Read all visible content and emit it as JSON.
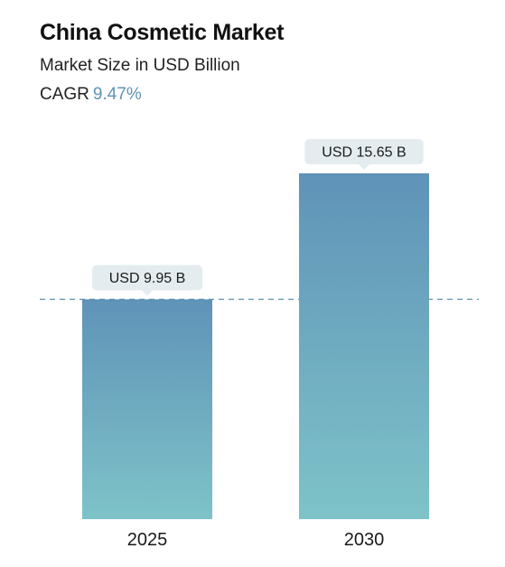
{
  "header": {
    "title": "China Cosmetic Market",
    "subtitle": "Market Size in USD Billion",
    "cagr_label": "CAGR",
    "cagr_value": "9.47%"
  },
  "colors": {
    "bar_top": "#5f93b8",
    "bar_bottom": "#7ec3c8",
    "callout_bg": "#e4ecef",
    "dashed_line": "#5b8fae",
    "cagr_accent": "#5f93b4"
  },
  "chart_data": {
    "type": "bar",
    "categories": [
      "2025",
      "2030"
    ],
    "values": [
      9.95,
      15.65
    ],
    "value_labels": [
      "USD 9.95 B",
      "USD 15.65 B"
    ],
    "ylim": [
      0,
      15.65
    ],
    "grid": false,
    "reference_line": 9.95
  }
}
